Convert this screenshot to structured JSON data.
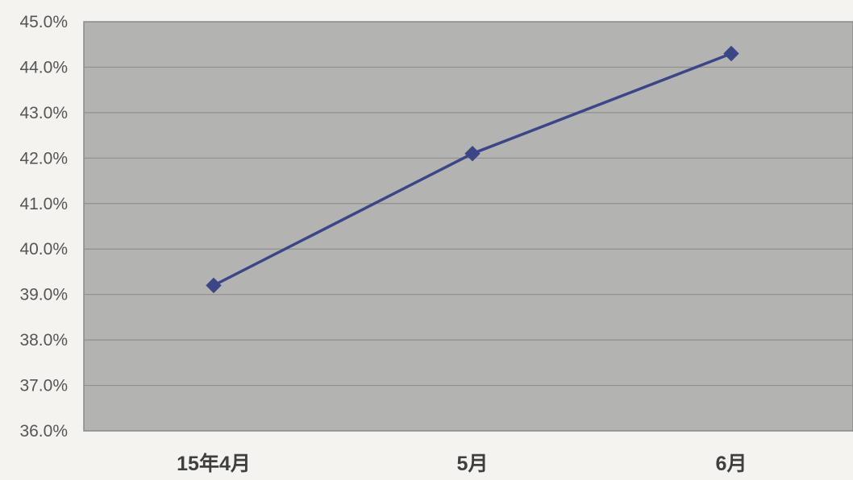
{
  "chart_data": {
    "type": "line",
    "title": "",
    "xlabel": "",
    "ylabel": "",
    "categories": [
      "15年4月",
      "5月",
      "6月"
    ],
    "series": [
      {
        "values": [
          39.2,
          42.1,
          44.3
        ],
        "color": "#3b4687"
      }
    ],
    "y_ticks": [
      "36.0%",
      "37.0%",
      "38.0%",
      "39.0%",
      "40.0%",
      "41.0%",
      "42.0%",
      "43.0%",
      "44.0%",
      "45.0%"
    ],
    "ylim": [
      36.0,
      45.0
    ],
    "y_format": "percent",
    "grid": true,
    "legend": "none",
    "marker": "diamond",
    "colors": {
      "plot_background": "#b3b3b1",
      "page_background": "#f4f3ef",
      "gridline": "#8f8f8f",
      "line": "#3b4687"
    }
  }
}
